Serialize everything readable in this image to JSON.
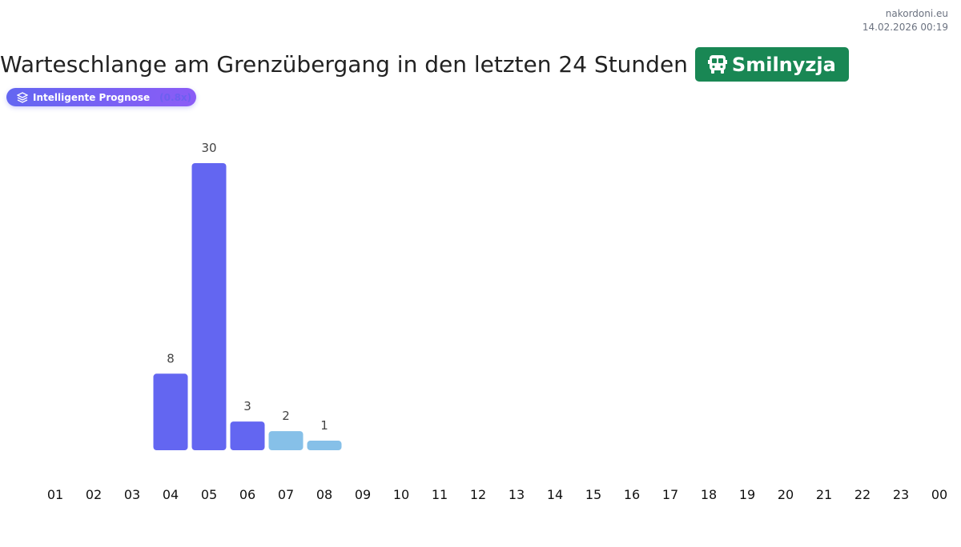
{
  "site": {
    "name": "nakordoni.eu",
    "timestamp": "14.02.2026 00:19"
  },
  "header": {
    "title": "Warteschlange am Grenzübergang in den letzten 24 Stunden",
    "crossing": "Smilnyzja",
    "crossing_icon": "bus-icon"
  },
  "forecast_badge": {
    "label": "Intelligente Prognose",
    "multiplier": "(0.8x)",
    "icon": "layers-icon"
  },
  "colors": {
    "actual": "#6366f1",
    "forecast": "#86c0e8",
    "badge": "#198754"
  },
  "chart_data": {
    "type": "bar",
    "title": "Warteschlange am Grenzübergang in den letzten 24 Stunden",
    "categories": [
      "01",
      "02",
      "03",
      "04",
      "05",
      "06",
      "07",
      "08",
      "09",
      "10",
      "11",
      "12",
      "13",
      "14",
      "15",
      "16",
      "17",
      "18",
      "19",
      "20",
      "21",
      "22",
      "23",
      "00"
    ],
    "values": [
      null,
      null,
      null,
      8,
      30,
      3,
      2,
      1,
      null,
      null,
      null,
      null,
      null,
      null,
      null,
      null,
      null,
      null,
      null,
      null,
      null,
      null,
      null,
      null
    ],
    "forecast": [
      false,
      false,
      false,
      false,
      false,
      false,
      true,
      true,
      false,
      false,
      false,
      false,
      false,
      false,
      false,
      false,
      false,
      false,
      false,
      false,
      false,
      false,
      false,
      false
    ],
    "ylim": [
      0,
      30
    ],
    "grid": false
  }
}
